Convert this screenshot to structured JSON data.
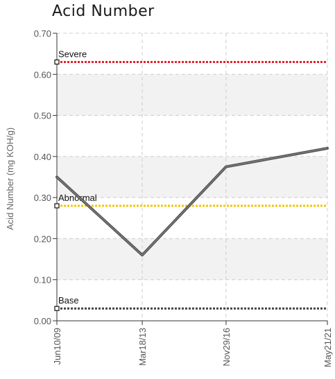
{
  "chart_data": {
    "type": "line",
    "title": "Acid Number",
    "xlabel": "",
    "ylabel": "Acid Number (mg KOH/g)",
    "ylim": [
      0,
      0.7
    ],
    "yticks": [
      "0.00",
      "0.10",
      "0.20",
      "0.30",
      "0.40",
      "0.50",
      "0.60",
      "0.70"
    ],
    "categories": [
      "Jun10/09",
      "Mar18/13",
      "Nov29/16",
      "May21/21"
    ],
    "x_dates": [
      "2009-06-10",
      "2013-03-18",
      "2016-11-29",
      "2021-05-21"
    ],
    "series": [
      {
        "values": [
          0.35,
          0.16,
          0.375,
          0.42
        ],
        "color": "#555555"
      }
    ],
    "reference_lines": [
      {
        "name": "Severe",
        "value": 0.63,
        "color": "#e8202a"
      },
      {
        "name": "Abnormal",
        "value": 0.28,
        "color": "#f5c400"
      },
      {
        "name": "Base",
        "value": 0.03,
        "color": "#444444"
      }
    ],
    "grid": true,
    "banding": true
  }
}
